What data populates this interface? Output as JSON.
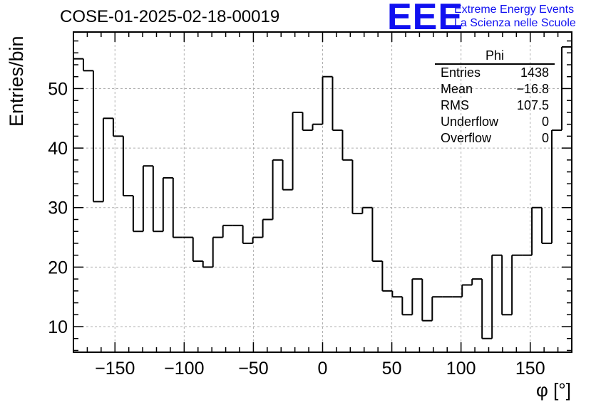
{
  "header": {
    "title": "COSE-01-2025-02-18-00019",
    "logo": "EEE",
    "logo_line1": "Extreme Energy Events",
    "logo_line2": "La Scienza nelle Scuole"
  },
  "stats": {
    "name": "Phi",
    "rows": [
      {
        "label": "Entries",
        "value": "1438"
      },
      {
        "label": "Mean",
        "value": "−16.8"
      },
      {
        "label": "RMS",
        "value": "107.5"
      },
      {
        "label": "Underflow",
        "value": "0"
      },
      {
        "label": "Overflow",
        "value": "0"
      }
    ]
  },
  "chart_data": {
    "type": "bar",
    "style": "step-histogram",
    "xlabel": "φ [°]",
    "ylabel": "Entries/bin",
    "xlim": [
      -180,
      180
    ],
    "ylim": [
      5.7,
      59.5
    ],
    "grid": true,
    "x_ticks": [
      -150,
      -100,
      -50,
      0,
      50,
      100,
      150
    ],
    "x_tick_labels": [
      "−150",
      "−100",
      "−50",
      "0",
      "50",
      "100",
      "150"
    ],
    "y_ticks": [
      10,
      20,
      30,
      40,
      50
    ],
    "bin_width": 7.2,
    "values": [
      55,
      53,
      31,
      45,
      42,
      32,
      26,
      37,
      26,
      35,
      25,
      25,
      21,
      20,
      25,
      27,
      27,
      24,
      25,
      28,
      38,
      33,
      46,
      43,
      44,
      52,
      43,
      38,
      29,
      30,
      21,
      16,
      15,
      12,
      18,
      11,
      15,
      15,
      15,
      17,
      18,
      8,
      22,
      12,
      22,
      22,
      30,
      24,
      43,
      57
    ]
  }
}
